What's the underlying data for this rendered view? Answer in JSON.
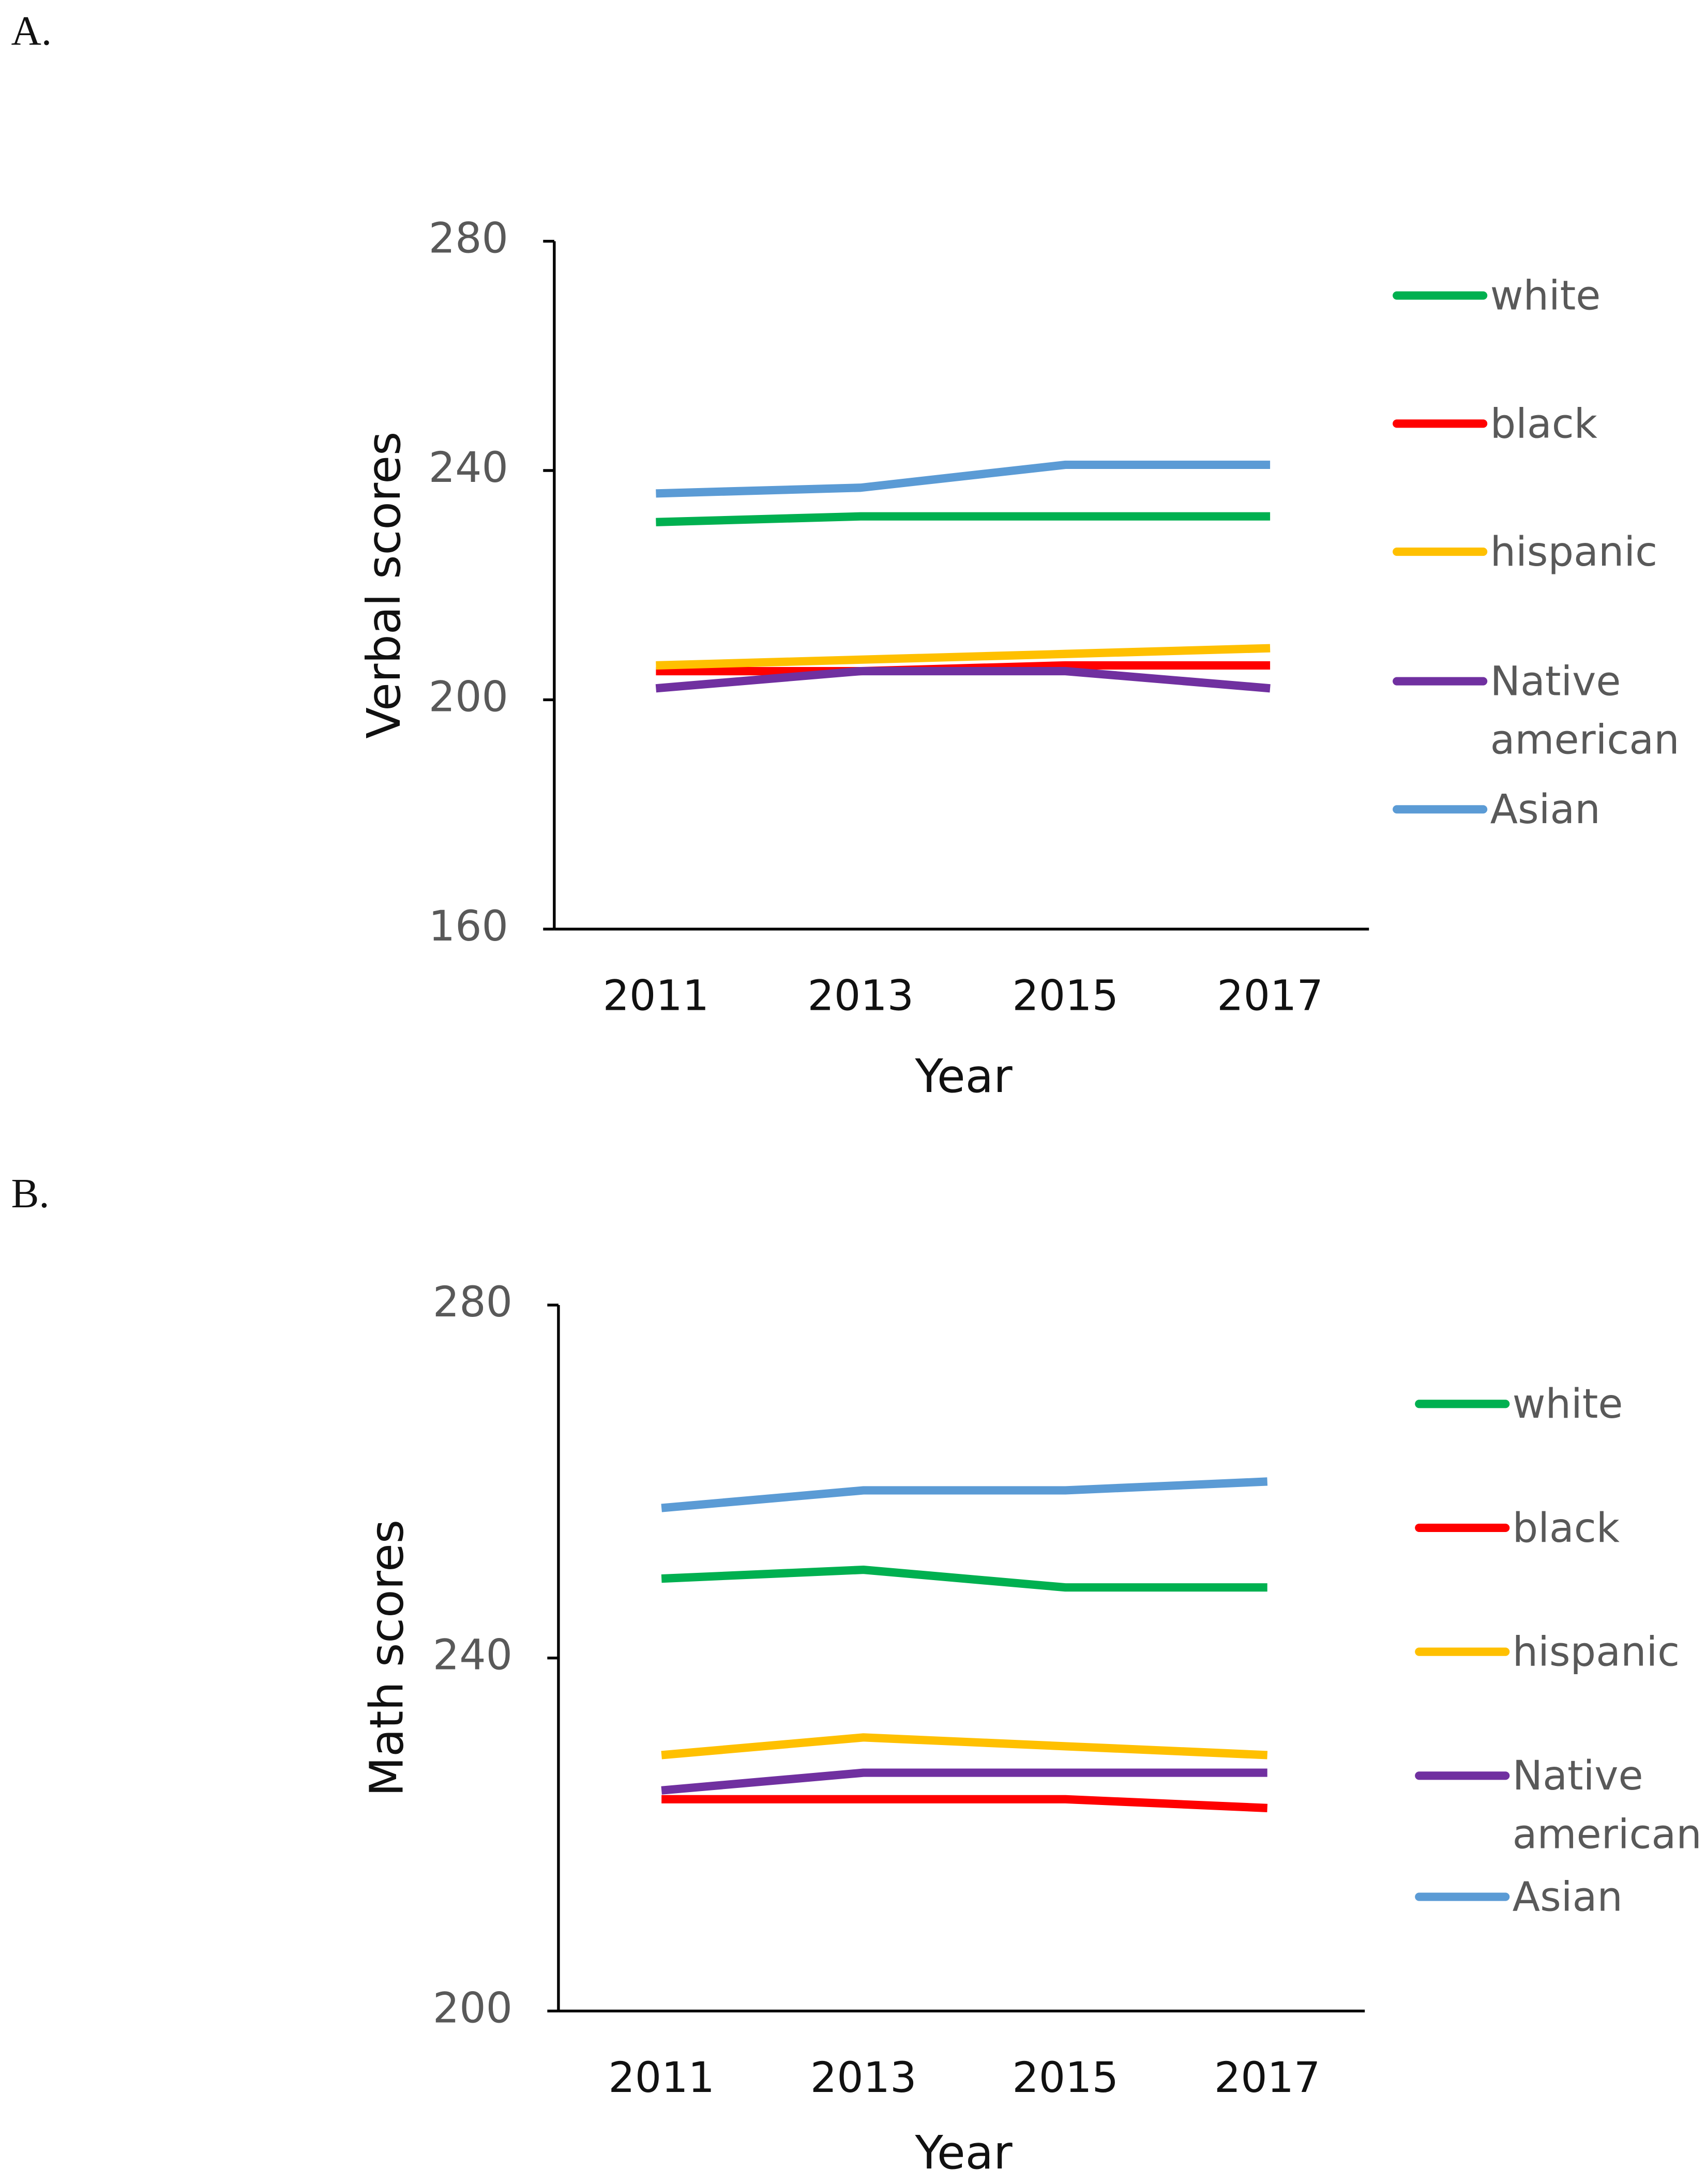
{
  "chart_data": [
    {
      "type": "line",
      "label": "A.",
      "x_label": "Year",
      "y_label": "Verbal scores",
      "categories": [
        "2011",
        "2013",
        "2015",
        "2017"
      ],
      "ylim": [
        160,
        280
      ],
      "yticks": [
        160,
        200,
        240,
        280
      ],
      "grid": false,
      "legend": "right",
      "series": [
        {
          "name": "white",
          "color": "#00b050",
          "values": [
            231,
            232,
            232,
            232
          ]
        },
        {
          "name": "black",
          "color": "#ff0000",
          "values": [
            205,
            205,
            206,
            206
          ]
        },
        {
          "name": "hispanic",
          "color": "#ffc000",
          "values": [
            206,
            207,
            208,
            209
          ]
        },
        {
          "name": "Native american",
          "color": "#7030a0",
          "values": [
            202,
            205,
            205,
            202
          ]
        },
        {
          "name": "Asian",
          "color": "#5b9bd5",
          "values": [
            236,
            237,
            241,
            241
          ]
        }
      ]
    },
    {
      "type": "line",
      "label": "B.",
      "x_label": "Year",
      "y_label": "Math scores",
      "categories": [
        "2011",
        "2013",
        "2015",
        "2017"
      ],
      "ylim": [
        200,
        280
      ],
      "yticks": [
        200,
        240,
        280
      ],
      "grid": false,
      "legend": "right",
      "series": [
        {
          "name": "white",
          "color": "#00b050",
          "values": [
            249,
            250,
            248,
            248
          ]
        },
        {
          "name": "black",
          "color": "#ff0000",
          "values": [
            224,
            224,
            224,
            223
          ]
        },
        {
          "name": "hispanic",
          "color": "#ffc000",
          "values": [
            229,
            231,
            230,
            229
          ]
        },
        {
          "name": "Native american",
          "color": "#7030a0",
          "values": [
            225,
            227,
            227,
            227
          ]
        },
        {
          "name": "Asian",
          "color": "#5b9bd5",
          "values": [
            257,
            259,
            259,
            260
          ]
        }
      ]
    }
  ]
}
